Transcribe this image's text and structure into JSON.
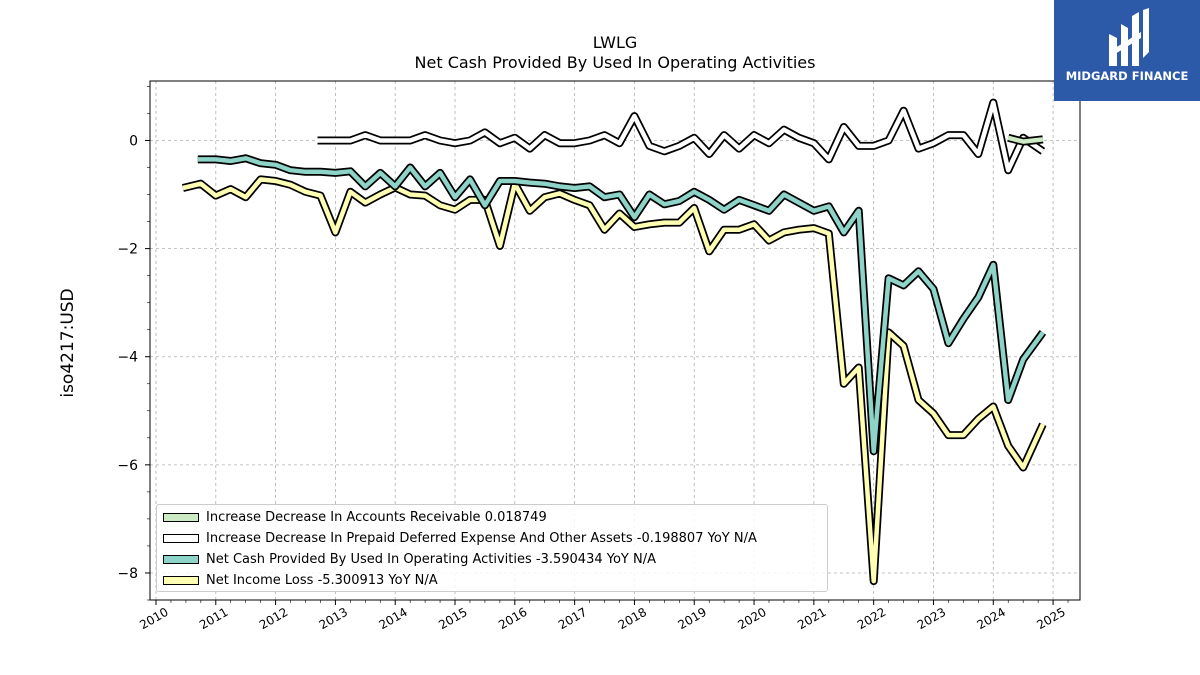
{
  "brand": {
    "name": "MIDGARD FINANCE"
  },
  "chart_data": {
    "type": "line",
    "title": "LWLG",
    "subtitle": "Net Cash Provided By Used In Operating Activities",
    "ylabel": "iso4217:USD",
    "xlabel": "",
    "xlim": [
      2009.9,
      2025.45
    ],
    "ylim": [
      -8.5,
      1.1
    ],
    "xticks": [
      "2010",
      "2011",
      "2012",
      "2013",
      "2014",
      "2015",
      "2016",
      "2017",
      "2018",
      "2019",
      "2020",
      "2021",
      "2022",
      "2023",
      "2024",
      "2025"
    ],
    "yticks": [
      0,
      -2,
      -4,
      -6,
      -8
    ],
    "ytick_labels": [
      "0",
      "−2",
      "−4",
      "−6",
      "−8"
    ],
    "grid": true,
    "legend_position": "lower-left",
    "series": [
      {
        "name": "Increase Decrease In Accounts Receivable",
        "legend_label": "Increase Decrease In Accounts Receivable  0.018749",
        "fill": "#ccebc5",
        "points": [
          [
            2024.25,
            0.05
          ],
          [
            2024.5,
            -0.02
          ],
          [
            2024.83,
            0.02
          ]
        ]
      },
      {
        "name": "Increase Decrease In Prepaid Deferred Expense And Other Assets",
        "legend_label": "Increase Decrease In Prepaid Deferred Expense And Other Assets  -0.198807 YoY N/A",
        "fill": "#ffffff",
        "points": [
          [
            2012.7,
            0.0
          ],
          [
            2013.0,
            0.0
          ],
          [
            2013.25,
            0.0
          ],
          [
            2013.5,
            0.1
          ],
          [
            2013.75,
            0.0
          ],
          [
            2014.0,
            0.0
          ],
          [
            2014.25,
            0.0
          ],
          [
            2014.5,
            0.1
          ],
          [
            2014.75,
            0.0
          ],
          [
            2015.0,
            -0.05
          ],
          [
            2015.25,
            0.0
          ],
          [
            2015.5,
            0.15
          ],
          [
            2015.75,
            -0.05
          ],
          [
            2016.0,
            0.05
          ],
          [
            2016.25,
            -0.15
          ],
          [
            2016.5,
            0.1
          ],
          [
            2016.75,
            -0.05
          ],
          [
            2017.0,
            -0.05
          ],
          [
            2017.25,
            0.0
          ],
          [
            2017.5,
            0.1
          ],
          [
            2017.75,
            -0.05
          ],
          [
            2018.0,
            0.45
          ],
          [
            2018.25,
            -0.1
          ],
          [
            2018.5,
            -0.2
          ],
          [
            2018.75,
            -0.1
          ],
          [
            2019.0,
            0.05
          ],
          [
            2019.25,
            -0.25
          ],
          [
            2019.5,
            0.1
          ],
          [
            2019.75,
            -0.15
          ],
          [
            2020.0,
            0.1
          ],
          [
            2020.25,
            -0.05
          ],
          [
            2020.5,
            0.2
          ],
          [
            2020.75,
            0.05
          ],
          [
            2021.0,
            -0.05
          ],
          [
            2021.25,
            -0.35
          ],
          [
            2021.5,
            0.25
          ],
          [
            2021.75,
            -0.1
          ],
          [
            2022.0,
            -0.1
          ],
          [
            2022.25,
            0.0
          ],
          [
            2022.5,
            0.55
          ],
          [
            2022.75,
            -0.15
          ],
          [
            2023.0,
            -0.05
          ],
          [
            2023.25,
            0.1
          ],
          [
            2023.5,
            0.1
          ],
          [
            2023.75,
            -0.25
          ],
          [
            2024.0,
            0.7
          ],
          [
            2024.25,
            -0.55
          ],
          [
            2024.5,
            0.05
          ],
          [
            2024.83,
            -0.2
          ]
        ]
      },
      {
        "name": "Net Cash Provided By Used In Operating Activities",
        "legend_label": "Net Cash Provided By Used In Operating Activities  -3.590434 YoY N/A",
        "fill": "#8dd3c7",
        "points": [
          [
            2010.7,
            -0.35
          ],
          [
            2011.0,
            -0.35
          ],
          [
            2011.25,
            -0.38
          ],
          [
            2011.5,
            -0.33
          ],
          [
            2011.75,
            -0.42
          ],
          [
            2012.0,
            -0.45
          ],
          [
            2012.25,
            -0.55
          ],
          [
            2012.5,
            -0.58
          ],
          [
            2012.75,
            -0.58
          ],
          [
            2013.0,
            -0.6
          ],
          [
            2013.25,
            -0.57
          ],
          [
            2013.5,
            -0.85
          ],
          [
            2013.75,
            -0.6
          ],
          [
            2014.0,
            -0.85
          ],
          [
            2014.25,
            -0.5
          ],
          [
            2014.5,
            -0.85
          ],
          [
            2014.75,
            -0.6
          ],
          [
            2015.0,
            -1.05
          ],
          [
            2015.25,
            -0.72
          ],
          [
            2015.5,
            -1.2
          ],
          [
            2015.75,
            -0.75
          ],
          [
            2016.0,
            -0.75
          ],
          [
            2016.25,
            -0.78
          ],
          [
            2016.5,
            -0.8
          ],
          [
            2016.75,
            -0.85
          ],
          [
            2017.0,
            -0.88
          ],
          [
            2017.25,
            -0.85
          ],
          [
            2017.5,
            -1.05
          ],
          [
            2017.75,
            -1.0
          ],
          [
            2018.0,
            -1.42
          ],
          [
            2018.25,
            -1.0
          ],
          [
            2018.5,
            -1.18
          ],
          [
            2018.75,
            -1.12
          ],
          [
            2019.0,
            -0.95
          ],
          [
            2019.25,
            -1.1
          ],
          [
            2019.5,
            -1.28
          ],
          [
            2019.75,
            -1.1
          ],
          [
            2020.0,
            -1.2
          ],
          [
            2020.25,
            -1.3
          ],
          [
            2020.5,
            -1.0
          ],
          [
            2020.75,
            -1.15
          ],
          [
            2021.0,
            -1.3
          ],
          [
            2021.25,
            -1.22
          ],
          [
            2021.5,
            -1.7
          ],
          [
            2021.75,
            -1.3
          ],
          [
            2022.0,
            -5.75
          ],
          [
            2022.25,
            -2.55
          ],
          [
            2022.5,
            -2.68
          ],
          [
            2022.75,
            -2.42
          ],
          [
            2023.0,
            -2.75
          ],
          [
            2023.25,
            -3.75
          ],
          [
            2023.5,
            -3.3
          ],
          [
            2023.75,
            -2.9
          ],
          [
            2024.0,
            -2.3
          ],
          [
            2024.25,
            -4.8
          ],
          [
            2024.5,
            -4.05
          ],
          [
            2024.83,
            -3.55
          ]
        ]
      },
      {
        "name": "Net Income Loss",
        "legend_label": "Net Income Loss  -5.300913 YoY N/A",
        "fill": "#ffffb3",
        "points": [
          [
            2010.45,
            -0.88
          ],
          [
            2010.75,
            -0.8
          ],
          [
            2011.0,
            -1.02
          ],
          [
            2011.25,
            -0.9
          ],
          [
            2011.5,
            -1.05
          ],
          [
            2011.75,
            -0.72
          ],
          [
            2012.0,
            -0.75
          ],
          [
            2012.25,
            -0.82
          ],
          [
            2012.5,
            -0.95
          ],
          [
            2012.75,
            -1.02
          ],
          [
            2013.0,
            -1.7
          ],
          [
            2013.25,
            -0.95
          ],
          [
            2013.5,
            -1.15
          ],
          [
            2013.75,
            -1.0
          ],
          [
            2014.0,
            -0.87
          ],
          [
            2014.25,
            -1.0
          ],
          [
            2014.5,
            -1.02
          ],
          [
            2014.75,
            -1.2
          ],
          [
            2015.0,
            -1.28
          ],
          [
            2015.25,
            -1.1
          ],
          [
            2015.5,
            -1.1
          ],
          [
            2015.75,
            -1.95
          ],
          [
            2016.0,
            -0.8
          ],
          [
            2016.25,
            -1.3
          ],
          [
            2016.5,
            -1.05
          ],
          [
            2016.75,
            -0.98
          ],
          [
            2017.0,
            -1.1
          ],
          [
            2017.25,
            -1.2
          ],
          [
            2017.5,
            -1.65
          ],
          [
            2017.75,
            -1.35
          ],
          [
            2018.0,
            -1.6
          ],
          [
            2018.25,
            -1.55
          ],
          [
            2018.5,
            -1.52
          ],
          [
            2018.75,
            -1.52
          ],
          [
            2019.0,
            -1.25
          ],
          [
            2019.25,
            -2.05
          ],
          [
            2019.5,
            -1.65
          ],
          [
            2019.75,
            -1.65
          ],
          [
            2020.0,
            -1.55
          ],
          [
            2020.25,
            -1.85
          ],
          [
            2020.5,
            -1.7
          ],
          [
            2020.75,
            -1.65
          ],
          [
            2021.0,
            -1.62
          ],
          [
            2021.25,
            -1.72
          ],
          [
            2021.5,
            -4.5
          ],
          [
            2021.75,
            -4.2
          ],
          [
            2022.0,
            -8.15
          ],
          [
            2022.25,
            -3.55
          ],
          [
            2022.5,
            -3.8
          ],
          [
            2022.75,
            -4.8
          ],
          [
            2023.0,
            -5.05
          ],
          [
            2023.25,
            -5.45
          ],
          [
            2023.5,
            -5.45
          ],
          [
            2023.75,
            -5.15
          ],
          [
            2024.0,
            -4.92
          ],
          [
            2024.25,
            -5.65
          ],
          [
            2024.5,
            -6.05
          ],
          [
            2024.83,
            -5.25
          ]
        ]
      }
    ]
  }
}
